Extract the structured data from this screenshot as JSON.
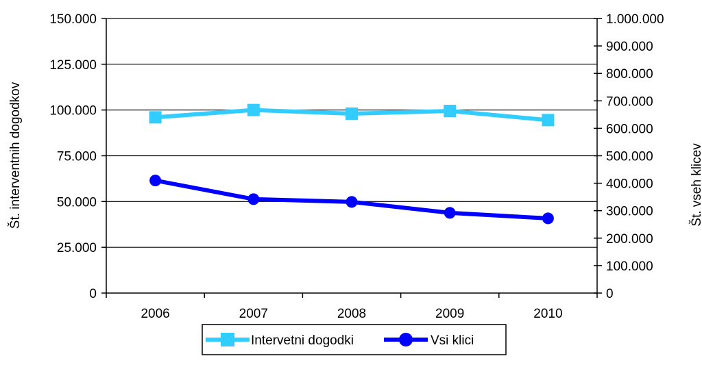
{
  "chart_data": {
    "type": "line",
    "categories": [
      "2006",
      "2007",
      "2008",
      "2009",
      "2010"
    ],
    "y_left": {
      "label": "Št. interventnih dogodkov",
      "range": [
        0,
        150000
      ],
      "ticks": [
        0,
        25000,
        50000,
        75000,
        100000,
        125000,
        150000
      ],
      "tick_labels": [
        "0",
        "25.000",
        "50.000",
        "75.000",
        "100.000",
        "125.000",
        "150.000"
      ]
    },
    "y_right": {
      "label": "Št. vseh klicev",
      "range": [
        0,
        1000000
      ],
      "ticks": [
        0,
        100000,
        200000,
        300000,
        400000,
        500000,
        600000,
        700000,
        800000,
        900000,
        1000000
      ],
      "tick_labels": [
        "0",
        "100.000",
        "200.000",
        "300.000",
        "400.000",
        "500.000",
        "600.000",
        "700.000",
        "800.000",
        "900.000",
        "1.000.000"
      ]
    },
    "series": [
      {
        "name": "Intervetni dogodki",
        "axis": "left",
        "marker": "square",
        "color": "#33CCFF",
        "values": [
          96000,
          100000,
          98000,
          99500,
          94500
        ]
      },
      {
        "name": "Vsi klici",
        "axis": "right",
        "marker": "circle",
        "color": "#0000FF",
        "values": [
          410000,
          342000,
          332000,
          292000,
          272000
        ]
      }
    ],
    "grid": true,
    "legend_position": "bottom"
  }
}
